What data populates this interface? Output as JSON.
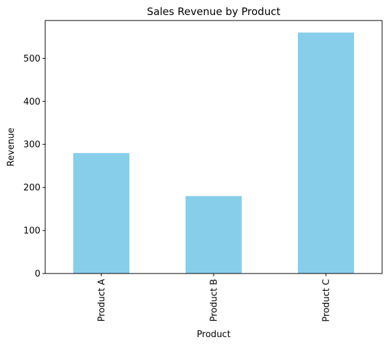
{
  "chart_data": {
    "type": "bar",
    "title": "Sales Revenue by Product",
    "xlabel": "Product",
    "ylabel": "Revenue",
    "categories": [
      "Product A",
      "Product B",
      "Product C"
    ],
    "values": [
      280,
      180,
      560
    ],
    "ylim": [
      0,
      588
    ],
    "yticks": [
      0,
      100,
      200,
      300,
      400,
      500
    ],
    "grid": false,
    "bar_color": "#87CEEB",
    "x_tick_rotation": "vertical"
  }
}
